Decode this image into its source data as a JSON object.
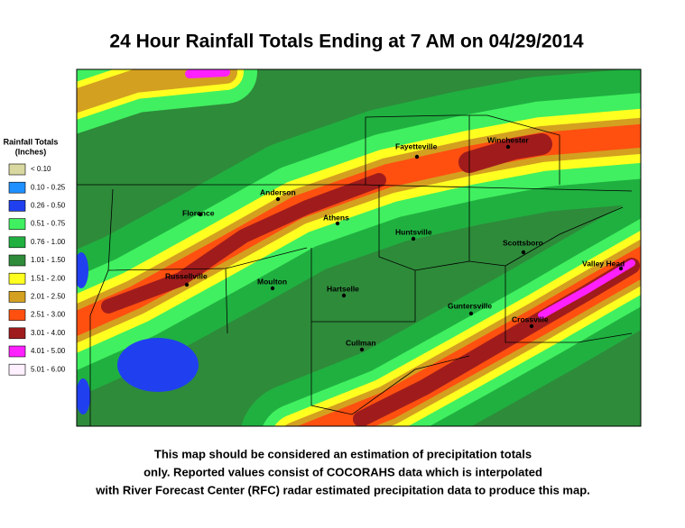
{
  "header": {
    "title": "24 Hour Rainfall Totals Ending at 7 AM on 04/29/2014"
  },
  "legend": {
    "title_lines": [
      "Rainfall Totals",
      "(Inches)"
    ],
    "items": [
      {
        "label": "< 0.10",
        "color": "#d8d8a0"
      },
      {
        "label": "0.10 - 0.25",
        "color": "#1e90ff"
      },
      {
        "label": "0.26 - 0.50",
        "color": "#2040f0"
      },
      {
        "label": "0.51 - 0.75",
        "color": "#40f060"
      },
      {
        "label": "0.76 - 1.00",
        "color": "#20b040"
      },
      {
        "label": "1.01 - 1.50",
        "color": "#2e8b3a"
      },
      {
        "label": "1.51 - 2.00",
        "color": "#ffff20"
      },
      {
        "label": "2.01 - 2.50",
        "color": "#d4a020"
      },
      {
        "label": "2.51 - 3.00",
        "color": "#ff5010"
      },
      {
        "label": "3.01 - 4.00",
        "color": "#a01c1c"
      },
      {
        "label": "4.01 - 5.00",
        "color": "#ff20ff"
      },
      {
        "label": "5.01 - 6.00",
        "color": "#fff0ff"
      }
    ]
  },
  "map": {
    "cities": [
      "Fayetteville",
      "Winchester",
      "Anderson",
      "Florence",
      "Athens",
      "Huntsville",
      "Scottsboro",
      "Valley Head",
      "Russellville",
      "Moulton",
      "Hartselle",
      "Guntersville",
      "Crossville",
      "Cullman"
    ]
  },
  "footer": {
    "lines": [
      "This map should be considered an estimation of precipitation totals",
      "only.  Reported values consist of COCORAHS data which is  interpolated",
      "with River Forecast Center (RFC) radar estimated precipitation data to produce this map."
    ]
  }
}
